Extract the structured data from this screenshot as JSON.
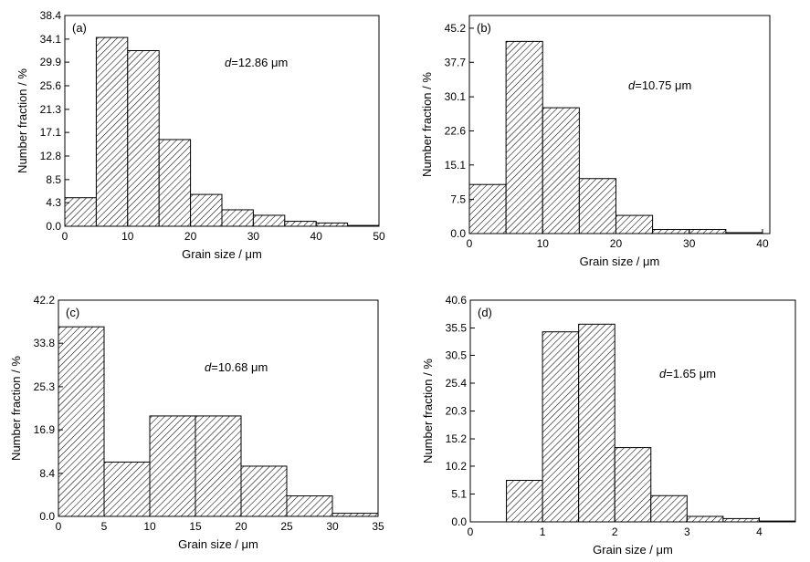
{
  "chart_data": [
    {
      "type": "bar",
      "panel_label": "(a)",
      "annotation": {
        "symbol": "d",
        "text": "=12.86 μm"
      },
      "xlabel": "Grain size / μm",
      "ylabel": "Number fraction / %",
      "xlim": [
        0,
        50
      ],
      "ylim": [
        0,
        38.4
      ],
      "x_ticks": [
        "0",
        "10",
        "20",
        "30",
        "40",
        "50"
      ],
      "y_ticks": [
        "0.0",
        "4.3",
        "8.5",
        "12.8",
        "17.1",
        "21.3",
        "25.6",
        "29.9",
        "34.1",
        "38.4"
      ],
      "bins": [
        [
          0,
          5
        ],
        [
          5,
          10
        ],
        [
          10,
          15
        ],
        [
          15,
          20
        ],
        [
          20,
          25
        ],
        [
          25,
          30
        ],
        [
          30,
          35
        ],
        [
          35,
          40
        ],
        [
          40,
          45
        ],
        [
          45,
          50
        ]
      ],
      "values": [
        5.2,
        34.4,
        32.0,
        15.8,
        5.8,
        3.0,
        2.0,
        0.9,
        0.6,
        0.15
      ],
      "bar_pattern": "diagonal-hatch",
      "grid": false
    },
    {
      "type": "bar",
      "panel_label": "(b)",
      "annotation": {
        "symbol": "d",
        "text": "=10.75 μm"
      },
      "xlabel": "Grain size / μm",
      "ylabel": "Number fraction / %",
      "xlim": [
        0,
        41
      ],
      "ylim": [
        0,
        48
      ],
      "x_ticks": [
        "0",
        "10",
        "20",
        "30",
        "40"
      ],
      "y_ticks": [
        "0.0",
        "7.5",
        "15.1",
        "22.6",
        "30.1",
        "37.7",
        "45.2"
      ],
      "y_tick_values": [
        0,
        7.5,
        15.1,
        22.6,
        30.1,
        37.7,
        45.2
      ],
      "bins": [
        [
          0,
          5
        ],
        [
          5,
          10
        ],
        [
          10,
          15
        ],
        [
          15,
          20
        ],
        [
          20,
          25
        ],
        [
          25,
          30
        ],
        [
          30,
          35
        ],
        [
          35,
          40
        ]
      ],
      "values": [
        10.8,
        42.3,
        27.7,
        12.1,
        4.0,
        0.9,
        0.9,
        0.2
      ],
      "bar_pattern": "diagonal-hatch",
      "grid": false
    },
    {
      "type": "bar",
      "panel_label": "(c)",
      "annotation": {
        "symbol": "d",
        "text": "=10.68 μm"
      },
      "xlabel": "Grain size / μm",
      "ylabel": "Number fraction / %",
      "xlim": [
        0,
        35
      ],
      "ylim": [
        0,
        42.2
      ],
      "x_ticks": [
        "0",
        "5",
        "10",
        "15",
        "20",
        "25",
        "30",
        "35"
      ],
      "y_ticks": [
        "0.0",
        "8.4",
        "16.9",
        "25.3",
        "33.8",
        "42.2"
      ],
      "bins": [
        [
          0,
          5
        ],
        [
          5,
          10
        ],
        [
          10,
          15
        ],
        [
          15,
          20
        ],
        [
          20,
          25
        ],
        [
          25,
          30
        ],
        [
          30,
          35
        ]
      ],
      "values": [
        37.0,
        10.6,
        19.6,
        19.6,
        9.8,
        4.0,
        0.6
      ],
      "bar_pattern": "diagonal-hatch",
      "grid": false
    },
    {
      "type": "bar",
      "panel_label": "(d)",
      "annotation": {
        "symbol": "d",
        "text": "=1.65 μm"
      },
      "xlabel": "Grain size / μm",
      "ylabel": "Number fraction / %",
      "xlim": [
        0,
        4.5
      ],
      "ylim": [
        0,
        40.6
      ],
      "x_ticks": [
        "0",
        "1",
        "2",
        "3",
        "4"
      ],
      "y_ticks": [
        "0.0",
        "5.1",
        "10.2",
        "15.2",
        "20.3",
        "25.4",
        "30.5",
        "35.5",
        "40.6"
      ],
      "bins": [
        [
          0.5,
          1.0
        ],
        [
          1.0,
          1.5
        ],
        [
          1.5,
          2.0
        ],
        [
          2.0,
          2.5
        ],
        [
          2.5,
          3.0
        ],
        [
          3.0,
          3.5
        ],
        [
          3.5,
          4.0
        ],
        [
          4.0,
          4.5
        ]
      ],
      "values": [
        7.6,
        34.8,
        36.2,
        13.6,
        4.8,
        1.0,
        0.6,
        0.15
      ],
      "bar_pattern": "diagonal-hatch",
      "grid": false
    }
  ]
}
